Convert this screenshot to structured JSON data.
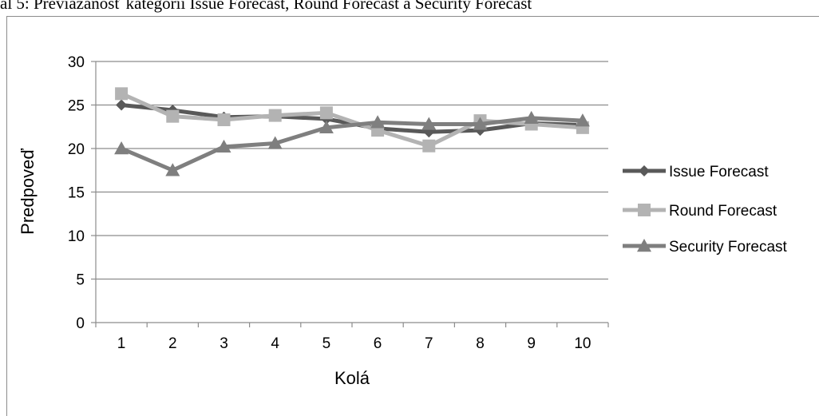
{
  "caption": "ál 5: Previazanosť kategórií Issue Forecast, Round Forecast a Security Forecast",
  "chart_data": {
    "type": "line",
    "title": "",
    "xlabel": "Kolá",
    "ylabel": "Predpoveď",
    "categories": [
      "1",
      "2",
      "3",
      "4",
      "5",
      "6",
      "7",
      "8",
      "9",
      "10"
    ],
    "ylim": [
      0,
      30
    ],
    "yticks": [
      0,
      5,
      10,
      15,
      20,
      25,
      30
    ],
    "grid": true,
    "legend_position": "right",
    "series": [
      {
        "name": "Issue Forecast",
        "marker": "diamond",
        "color": "#595959",
        "values": [
          25.0,
          24.4,
          23.6,
          23.7,
          23.4,
          22.3,
          21.9,
          22.1,
          22.9,
          22.7
        ]
      },
      {
        "name": "Round Forecast",
        "marker": "square",
        "color": "#b3b3b3",
        "values": [
          26.3,
          23.7,
          23.3,
          23.8,
          24.1,
          22.1,
          20.3,
          23.2,
          22.8,
          22.4
        ]
      },
      {
        "name": "Security Forecast",
        "marker": "triangle",
        "color": "#7f7f7f",
        "values": [
          20.0,
          17.5,
          20.2,
          20.6,
          22.4,
          23.0,
          22.8,
          22.8,
          23.5,
          23.2
        ]
      }
    ]
  }
}
